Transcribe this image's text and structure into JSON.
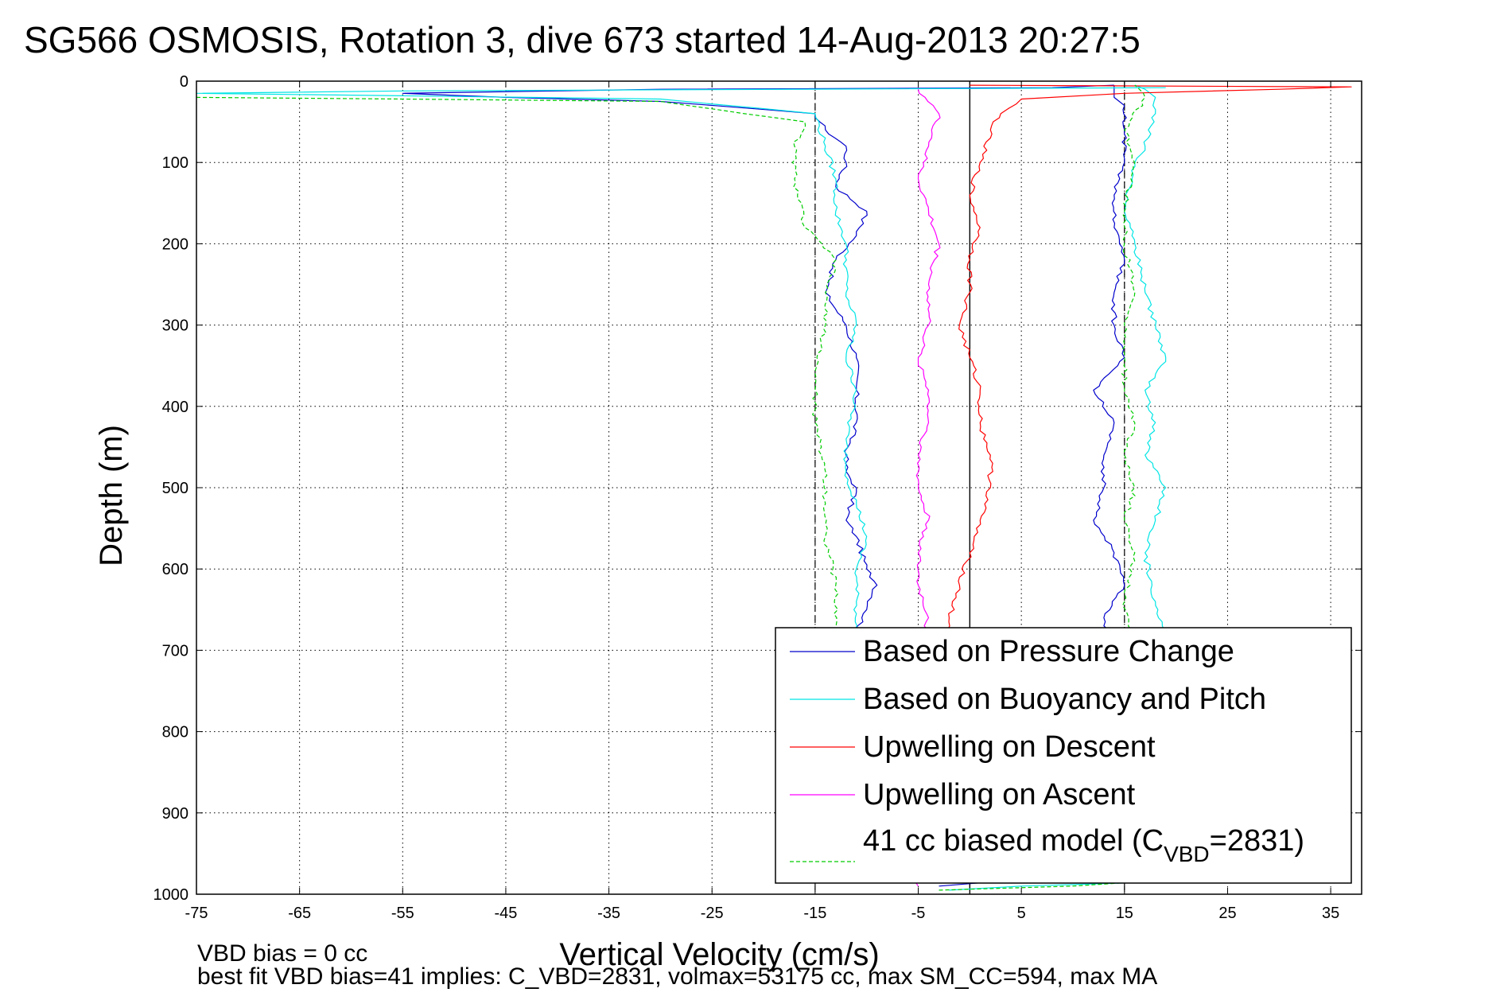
{
  "chart_data": {
    "type": "line",
    "title": "SG566 OSMOSIS, Rotation 3, dive 673 started 14-Aug-2013 20:27:5",
    "xlabel": "Vertical Velocity (cm/s)",
    "ylabel": "Depth (m)",
    "xlim": [
      -75,
      38
    ],
    "ylim": [
      0,
      1000
    ],
    "y_inverted": true,
    "grid": true,
    "x_ticks": [
      "-75",
      "-65",
      "-55",
      "-45",
      "-35",
      "-25",
      "-15",
      "-5",
      "5",
      "15",
      "25",
      "35"
    ],
    "y_ticks": [
      "0",
      "100",
      "200",
      "300",
      "400",
      "500",
      "600",
      "700",
      "800",
      "900",
      "1000"
    ],
    "reference_lines": {
      "dashed_x": [
        -15,
        15
      ],
      "solid_x": [
        0
      ]
    },
    "legend_position": "bottom-right",
    "legend": [
      {
        "label": "Based on Pressure Change",
        "color": "#0000cc",
        "dash": "solid"
      },
      {
        "label": "Based on Buoyancy and Pitch",
        "color": "#00e5e5",
        "dash": "solid"
      },
      {
        "label": "Upwelling on Descent",
        "color": "#ff0000",
        "dash": "solid"
      },
      {
        "label": "Upwelling on Ascent",
        "color": "#ff00ff",
        "dash": "solid"
      },
      {
        "label_main": "41 cc biased model (C",
        "label_sub": "VBD",
        "label_tail": "=2831)",
        "color": "#00cc00",
        "dash": "dashed"
      }
    ],
    "series": [
      {
        "color": "#0000cc",
        "dash": "solid",
        "x": [
          14,
          8,
          -30,
          -55,
          -45,
          -30,
          -15,
          -14,
          -12,
          -12,
          -13,
          -10,
          -11,
          -13,
          -14,
          -12,
          -11,
          -11,
          -11,
          -12,
          -12,
          -11,
          -12,
          -11,
          -10,
          -9,
          -10,
          -11,
          -11,
          -12,
          -11,
          -11,
          -12,
          -12
        ],
        "y": [
          5,
          8,
          10,
          15,
          20,
          25,
          40,
          60,
          80,
          100,
          130,
          160,
          190,
          220,
          260,
          300,
          340,
          380,
          420,
          460,
          480,
          500,
          540,
          560,
          600,
          620,
          650,
          680,
          720,
          760,
          800,
          850,
          900,
          940
        ]
      },
      {
        "color": "#0000cc",
        "dash": "solid",
        "x": [
          -3,
          2,
          10,
          13,
          13,
          11,
          12,
          14,
          14,
          13,
          15,
          14,
          12,
          13,
          13,
          14,
          12,
          15,
          14,
          14,
          15,
          14,
          14,
          15,
          15,
          15,
          14,
          14,
          14
        ],
        "y": [
          990,
          985,
          975,
          940,
          900,
          850,
          800,
          760,
          700,
          660,
          620,
          580,
          540,
          500,
          460,
          420,
          380,
          340,
          300,
          260,
          220,
          180,
          140,
          100,
          60,
          30,
          20,
          10,
          5
        ]
      },
      {
        "color": "#00e5e5",
        "dash": "solid",
        "x": [
          19,
          -55,
          -75,
          -55,
          -30,
          -15,
          -14,
          -13,
          -13,
          -12,
          -12,
          -11,
          -12,
          -11,
          -12,
          -12,
          -11,
          -10,
          -11,
          -11,
          -11,
          -12
        ],
        "y": [
          8,
          12,
          15,
          18,
          22,
          40,
          80,
          120,
          160,
          200,
          260,
          300,
          340,
          380,
          440,
          480,
          520,
          560,
          600,
          640,
          700,
          760
        ]
      },
      {
        "color": "#00e5e5",
        "dash": "solid",
        "x": [
          -2,
          5,
          18,
          18,
          18,
          19,
          18,
          17,
          18,
          19,
          17,
          18,
          17,
          19,
          18,
          17,
          16,
          15,
          16,
          17,
          18,
          18,
          17,
          16
        ],
        "y": [
          995,
          990,
          985,
          900,
          800,
          700,
          640,
          580,
          540,
          500,
          460,
          420,
          380,
          340,
          300,
          260,
          200,
          160,
          100,
          80,
          40,
          20,
          10,
          5
        ]
      },
      {
        "color": "#ff0000",
        "dash": "solid",
        "x": [
          0,
          37,
          30,
          15,
          5,
          3,
          2,
          1,
          0,
          1,
          0,
          0,
          -1,
          0,
          1,
          1,
          2,
          2,
          1,
          0,
          -1,
          -2,
          -2,
          -1
        ],
        "y": [
          5,
          7,
          10,
          15,
          22,
          40,
          60,
          100,
          140,
          180,
          220,
          260,
          300,
          340,
          380,
          420,
          460,
          500,
          540,
          580,
          620,
          660,
          700,
          760
        ]
      },
      {
        "color": "#ff00ff",
        "dash": "solid",
        "x": [
          -5,
          -3,
          -4,
          -5,
          -4,
          -3,
          -4,
          -4,
          -5,
          -4,
          -4,
          -5,
          -5,
          -4,
          -5,
          -5,
          -4,
          -5,
          -5,
          -6,
          -5
        ],
        "y": [
          10,
          40,
          80,
          120,
          160,
          200,
          250,
          300,
          340,
          380,
          420,
          460,
          500,
          540,
          580,
          620,
          660,
          700,
          760,
          800,
          990
        ]
      },
      {
        "color": "#00cc00",
        "dash": "dashed",
        "x": [
          -75,
          -55,
          -30,
          -16,
          -17,
          -17,
          -16,
          -13,
          -14,
          -14,
          -15,
          -15,
          -14,
          -14,
          -14,
          -13,
          -13,
          -12
        ],
        "y": [
          20,
          22,
          25,
          50,
          80,
          120,
          180,
          220,
          260,
          300,
          360,
          420,
          480,
          520,
          560,
          620,
          680,
          740
        ]
      },
      {
        "color": "#00cc00",
        "dash": "dashed",
        "x": [
          -3,
          10,
          16,
          16,
          15,
          16,
          15,
          16,
          15,
          16,
          15,
          16,
          15,
          15,
          15,
          16,
          15,
          15,
          16,
          15,
          17,
          16
        ],
        "y": [
          995,
          990,
          985,
          900,
          800,
          700,
          640,
          580,
          540,
          500,
          460,
          420,
          380,
          340,
          300,
          260,
          200,
          160,
          100,
          60,
          20,
          5
        ]
      }
    ],
    "footer": {
      "line1": "VBD bias = 0 cc",
      "line2": "best fit VBD bias=41 implies: C_VBD=2831, volmax=53175 cc, max SM_CC=594, max MA"
    }
  }
}
